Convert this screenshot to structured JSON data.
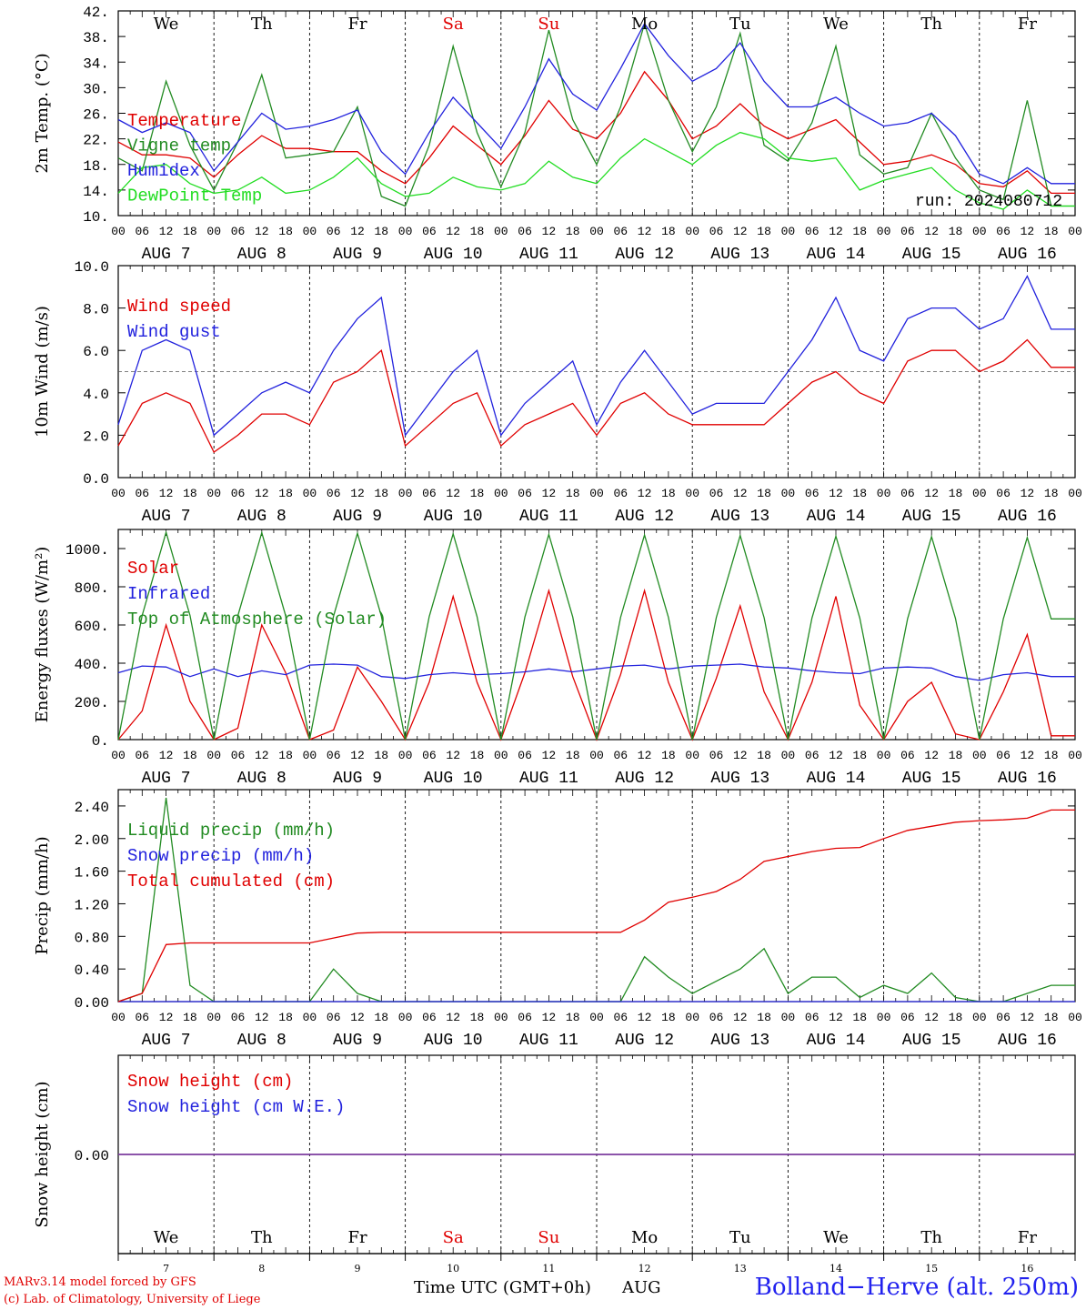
{
  "run_label": "run: 2024080712",
  "weekdays": [
    {
      "label": "We",
      "color": "#000000"
    },
    {
      "label": "Th",
      "color": "#000000"
    },
    {
      "label": "Fr",
      "color": "#000000"
    },
    {
      "label": "Sa",
      "color": "#e00000"
    },
    {
      "label": "Su",
      "color": "#e00000"
    },
    {
      "label": "Mo",
      "color": "#000000"
    },
    {
      "label": "Tu",
      "color": "#000000"
    },
    {
      "label": "We",
      "color": "#000000"
    },
    {
      "label": "Th",
      "color": "#000000"
    },
    {
      "label": "Fr",
      "color": "#000000"
    }
  ],
  "hour_ticks": [
    "00",
    "06",
    "12",
    "18"
  ],
  "date_labels": [
    "AUG  7",
    "AUG  8",
    "AUG  9",
    "AUG 10",
    "AUG 11",
    "AUG 12",
    "AUG 13",
    "AUG 14",
    "AUG 15",
    "AUG 16"
  ],
  "day_numbers": [
    "7",
    "8",
    "9",
    "10",
    "11",
    "12",
    "13",
    "14",
    "15",
    "16"
  ],
  "footer": {
    "model": "MARv3.14 model forced by GFS",
    "lab": "(c) Lab. of Climatology, University of Liege",
    "xlabel": "Time UTC (GMT+0h)",
    "month": "AUG",
    "station": "Bolland−Herve (alt. 250m)"
  },
  "chart_data": [
    {
      "type": "line",
      "ylabel": "2m Temp. (°C)",
      "ylim": [
        10,
        42
      ],
      "yticks": [
        "10.",
        "14.",
        "18.",
        "22.",
        "26.",
        "30.",
        "34.",
        "38.",
        "42."
      ],
      "ytick_values": [
        10,
        14,
        18,
        22,
        26,
        30,
        34,
        38,
        42
      ],
      "x_unit": "hours since AUG 7 00 UTC",
      "step_hours": 6,
      "series": [
        {
          "name": "Temperature",
          "color": "#e00000",
          "values": [
            21.5,
            19.5,
            19.5,
            19.0,
            16.0,
            19.5,
            22.5,
            20.5,
            20.5,
            20.0,
            20.0,
            17.0,
            15.0,
            19.0,
            24.0,
            21.0,
            18.0,
            22.5,
            28.0,
            23.5,
            22.0,
            26.0,
            32.5,
            28.0,
            22.0,
            24.0,
            27.5,
            24.0,
            22.0,
            23.5,
            25.0,
            21.5,
            18.0,
            18.5,
            19.5,
            18.0,
            15.0,
            14.5,
            17.0,
            13.5
          ]
        },
        {
          "name": "Vigne temp",
          "color": "#228b22",
          "values": [
            19.0,
            17.0,
            31.0,
            21.0,
            14.0,
            21.5,
            32.0,
            19.0,
            19.5,
            20.0,
            27.0,
            13.0,
            11.5,
            21.0,
            36.5,
            23.0,
            14.5,
            23.0,
            39.0,
            25.0,
            18.0,
            27.0,
            40.0,
            28.0,
            20.0,
            27.0,
            38.5,
            21.0,
            18.5,
            24.5,
            36.5,
            19.5,
            16.5,
            17.5,
            26.0,
            19.0,
            14.0,
            12.5,
            28.0,
            11.5
          ]
        },
        {
          "name": "Humidex",
          "color": "#2222dd",
          "values": [
            25.0,
            23.0,
            24.5,
            23.0,
            17.0,
            21.5,
            26.0,
            23.5,
            24.0,
            25.0,
            26.5,
            20.0,
            16.5,
            23.0,
            28.5,
            24.5,
            20.5,
            27.0,
            34.5,
            29.0,
            26.5,
            33.0,
            40.0,
            35.0,
            31.0,
            33.0,
            37.0,
            31.0,
            27.0,
            27.0,
            28.5,
            26.0,
            24.0,
            24.5,
            26.0,
            22.5,
            16.5,
            15.0,
            17.5,
            15.0
          ]
        },
        {
          "name": "DewPoint Temp",
          "color": "#22dd22",
          "values": [
            13.5,
            17.5,
            18.0,
            15.0,
            13.5,
            14.0,
            16.0,
            13.5,
            14.0,
            16.0,
            19.0,
            15.0,
            13.0,
            13.5,
            16.0,
            14.5,
            14.0,
            15.0,
            18.5,
            16.0,
            15.0,
            19.0,
            22.0,
            20.0,
            18.0,
            21.0,
            23.0,
            22.0,
            19.0,
            18.5,
            19.0,
            14.0,
            15.5,
            16.5,
            17.5,
            14.0,
            12.0,
            11.0,
            14.0,
            11.5
          ]
        }
      ]
    },
    {
      "type": "line",
      "ylabel": "10m Wind (m/s)",
      "ylim": [
        0,
        10
      ],
      "yticks": [
        "0.0",
        "2.0",
        "4.0",
        "6.0",
        "8.0",
        "10.0"
      ],
      "ytick_values": [
        0,
        2,
        4,
        6,
        8,
        10
      ],
      "reference_line": 5.0,
      "step_hours": 6,
      "series": [
        {
          "name": "Wind speed",
          "color": "#e00000",
          "values": [
            1.5,
            3.5,
            4.0,
            3.5,
            1.2,
            2.0,
            3.0,
            3.0,
            2.5,
            4.5,
            5.0,
            6.0,
            1.5,
            2.5,
            3.5,
            4.0,
            1.5,
            2.5,
            3.0,
            3.5,
            2.0,
            3.5,
            4.0,
            3.0,
            2.5,
            2.5,
            2.5,
            2.5,
            3.5,
            4.5,
            5.0,
            4.0,
            3.5,
            5.5,
            6.0,
            6.0,
            5.0,
            5.5,
            6.5,
            5.2
          ]
        },
        {
          "name": "Wind gust",
          "color": "#2222dd",
          "values": [
            2.5,
            6.0,
            6.5,
            6.0,
            2.0,
            3.0,
            4.0,
            4.5,
            4.0,
            6.0,
            7.5,
            8.5,
            2.0,
            3.5,
            5.0,
            6.0,
            2.0,
            3.5,
            4.5,
            5.5,
            2.5,
            4.5,
            6.0,
            4.5,
            3.0,
            3.5,
            3.5,
            3.5,
            5.0,
            6.5,
            8.5,
            6.0,
            5.5,
            7.5,
            8.0,
            8.0,
            7.0,
            7.5,
            9.5,
            7.0
          ]
        }
      ]
    },
    {
      "type": "line",
      "ylabel": "Energy fluxes (W/m²)",
      "ylim": [
        0,
        1100
      ],
      "yticks": [
        "0.",
        "200.",
        "400.",
        "600.",
        "800.",
        "1000."
      ],
      "ytick_values": [
        0,
        200,
        400,
        600,
        800,
        1000
      ],
      "step_hours": 6,
      "series": [
        {
          "name": "Solar",
          "color": "#e00000",
          "values": [
            0,
            150,
            600,
            200,
            0,
            60,
            600,
            350,
            0,
            50,
            380,
            200,
            0,
            300,
            750,
            300,
            0,
            350,
            780,
            330,
            0,
            340,
            780,
            300,
            0,
            320,
            700,
            250,
            0,
            300,
            750,
            180,
            0,
            200,
            300,
            30,
            0,
            250,
            550,
            20
          ]
        },
        {
          "name": "Infrared",
          "color": "#2222dd",
          "values": [
            350,
            385,
            380,
            330,
            370,
            330,
            360,
            340,
            390,
            395,
            390,
            330,
            320,
            340,
            350,
            340,
            345,
            355,
            370,
            355,
            370,
            385,
            390,
            370,
            385,
            390,
            395,
            380,
            375,
            360,
            350,
            345,
            375,
            380,
            375,
            330,
            310,
            340,
            350,
            330
          ]
        },
        {
          "name": "Top of Atmosphere (Solar)",
          "color": "#228b22",
          "values": [
            0,
            650,
            1085,
            650,
            0,
            648,
            1083,
            648,
            0,
            646,
            1080,
            646,
            0,
            644,
            1077,
            644,
            0,
            642,
            1074,
            642,
            0,
            640,
            1071,
            640,
            0,
            638,
            1068,
            638,
            0,
            636,
            1065,
            636,
            0,
            634,
            1062,
            634,
            0,
            632,
            1058,
            632
          ]
        }
      ]
    },
    {
      "type": "line",
      "ylabel": "Precip (mm/h)",
      "ylim": [
        0,
        2.6
      ],
      "yticks": [
        "0.00",
        "0.40",
        "0.80",
        "1.20",
        "1.60",
        "2.00",
        "2.40"
      ],
      "ytick_values": [
        0,
        0.4,
        0.8,
        1.2,
        1.6,
        2.0,
        2.4
      ],
      "step_hours": 6,
      "series": [
        {
          "name": "Liquid precip (mm/h)",
          "color": "#228b22",
          "values": [
            0,
            0.1,
            2.5,
            0.2,
            0,
            0,
            0,
            0,
            0,
            0.4,
            0.1,
            0,
            0,
            0,
            0,
            0,
            0,
            0,
            0,
            0,
            0,
            0,
            0.55,
            0.3,
            0.1,
            0.25,
            0.4,
            0.65,
            0.1,
            0.3,
            0.3,
            0.05,
            0.2,
            0.1,
            0.35,
            0.05,
            0,
            0,
            0.1,
            0.2
          ]
        },
        {
          "name": "Snow precip (mm/h)",
          "color": "#2222dd",
          "values": [
            0,
            0,
            0,
            0,
            0,
            0,
            0,
            0,
            0,
            0,
            0,
            0,
            0,
            0,
            0,
            0,
            0,
            0,
            0,
            0,
            0,
            0,
            0,
            0,
            0,
            0,
            0,
            0,
            0,
            0,
            0,
            0,
            0,
            0,
            0,
            0,
            0,
            0,
            0,
            0
          ]
        },
        {
          "name": "Total cumulated (cm)",
          "color": "#e00000",
          "values": [
            0,
            0.1,
            0.7,
            0.72,
            0.72,
            0.72,
            0.72,
            0.72,
            0.72,
            0.78,
            0.84,
            0.85,
            0.85,
            0.85,
            0.85,
            0.85,
            0.85,
            0.85,
            0.85,
            0.85,
            0.85,
            0.85,
            1.0,
            1.22,
            1.28,
            1.35,
            1.5,
            1.72,
            1.78,
            1.84,
            1.88,
            1.89,
            2.0,
            2.1,
            2.15,
            2.2,
            2.22,
            2.23,
            2.25,
            2.35
          ]
        }
      ]
    },
    {
      "type": "line",
      "ylabel": "Snow height (cm)",
      "ylim": [
        -1,
        1
      ],
      "yticks": [
        "0.00"
      ],
      "ytick_values": [
        0
      ],
      "step_hours": 6,
      "series": [
        {
          "name": "Snow height (cm)",
          "color": "#e00000",
          "values": [
            0,
            0,
            0,
            0,
            0,
            0,
            0,
            0,
            0,
            0,
            0,
            0,
            0,
            0,
            0,
            0,
            0,
            0,
            0,
            0,
            0,
            0,
            0,
            0,
            0,
            0,
            0,
            0,
            0,
            0,
            0,
            0,
            0,
            0,
            0,
            0,
            0,
            0,
            0,
            0
          ]
        },
        {
          "name": "Snow height (cm W.E.)",
          "color": "#2222dd",
          "values": [
            0,
            0,
            0,
            0,
            0,
            0,
            0,
            0,
            0,
            0,
            0,
            0,
            0,
            0,
            0,
            0,
            0,
            0,
            0,
            0,
            0,
            0,
            0,
            0,
            0,
            0,
            0,
            0,
            0,
            0,
            0,
            0,
            0,
            0,
            0,
            0,
            0,
            0,
            0,
            0
          ]
        }
      ]
    }
  ]
}
